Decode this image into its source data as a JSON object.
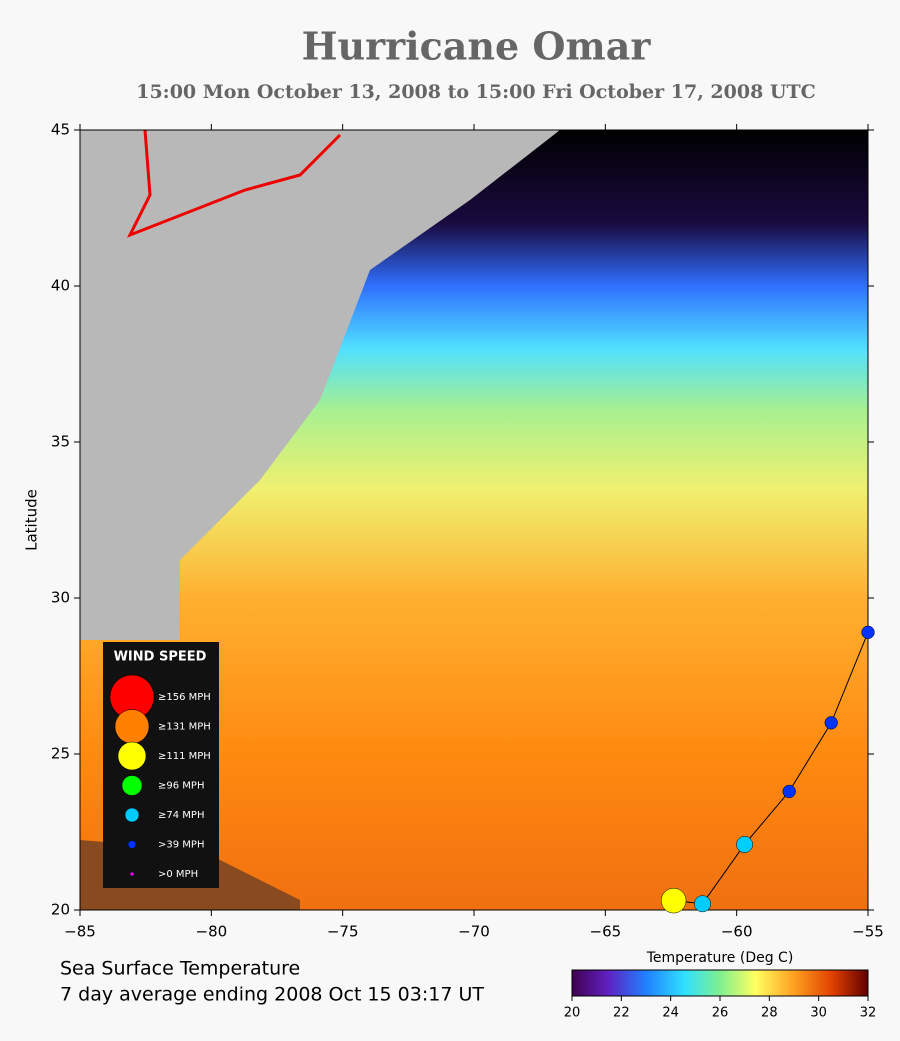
{
  "chart_data": {
    "type": "track",
    "title": "Hurricane Omar",
    "subtitle": "15:00 Mon October 13, 2008 to 15:00 Fri October 17, 2008  UTC",
    "ylabel": "Latitude",
    "xlim": [
      -85,
      -55
    ],
    "ylim": [
      20,
      45
    ],
    "xticks": [
      {
        "value": -85,
        "label": "−85"
      },
      {
        "value": -80,
        "label": "−80"
      },
      {
        "value": -75,
        "label": "−75"
      },
      {
        "value": -70,
        "label": "−70"
      },
      {
        "value": -65,
        "label": "−65"
      },
      {
        "value": -60,
        "label": "−60"
      },
      {
        "value": -55,
        "label": "−55"
      }
    ],
    "yticks": [
      20,
      25,
      30,
      35,
      40,
      45
    ],
    "track": {
      "lon": [
        -62.4,
        -61.3,
        -59.7,
        -58.0,
        -56.4,
        -55.0
      ],
      "lat": [
        20.3,
        20.2,
        22.1,
        23.8,
        26.0,
        28.9
      ],
      "wind_class": [
        2,
        4,
        4,
        5,
        5,
        5
      ]
    },
    "legend": {
      "title": "WIND SPEED",
      "labels": [
        "≥156 MPH",
        "≥131 MPH",
        "≥111 MPH",
        "≥96 MPH",
        "≥74 MPH",
        ">39 MPH",
        ">0 MPH"
      ],
      "colors": [
        "#ff0000",
        "#ff7f00",
        "#ffff00",
        "#00ff00",
        "#00ccff",
        "#0033ff",
        "#ff00ff"
      ]
    },
    "colorbar": {
      "title": "Temperature (Deg C)",
      "lim": [
        20,
        32
      ],
      "ticks": [
        20,
        22,
        24,
        26,
        28,
        30,
        32
      ]
    },
    "footer": [
      "Sea Surface Temperature",
      "7 day average ending 2008 Oct 15 03:17 UT"
    ]
  }
}
